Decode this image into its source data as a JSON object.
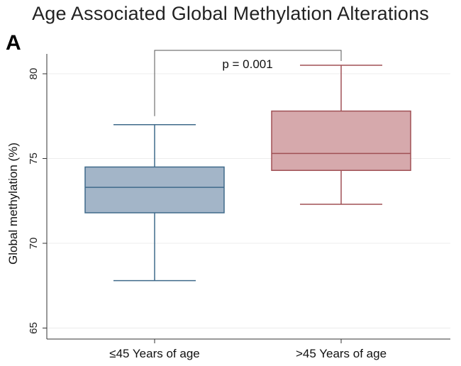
{
  "title": "Age Associated Global Methylation Alterations",
  "panel_label": "A",
  "chart_data": {
    "type": "box",
    "title": "Age Associated Global Methylation Alterations",
    "ylabel": "Global methylation (%)",
    "xlabel": "",
    "ylim": [
      64.5,
      81.5
    ],
    "yticks": [
      65,
      70,
      75,
      80
    ],
    "grid": true,
    "categories": [
      "≤45 Years of age",
      ">45 Years of age"
    ],
    "boxes": [
      {
        "category": "≤45 Years of age",
        "whisker_low": 67.8,
        "q1": 71.8,
        "median": 73.3,
        "q3": 74.5,
        "whisker_high": 77.0,
        "fill": "#a3b5c8",
        "stroke": "#3f6a8a"
      },
      {
        "category": ">45 Years of age",
        "whisker_low": 72.3,
        "q1": 74.3,
        "median": 75.3,
        "q3": 77.8,
        "whisker_high": 80.5,
        "fill": "#d6a9ac",
        "stroke": "#a05055"
      }
    ],
    "annotation": {
      "text": "p = 0.001"
    }
  }
}
